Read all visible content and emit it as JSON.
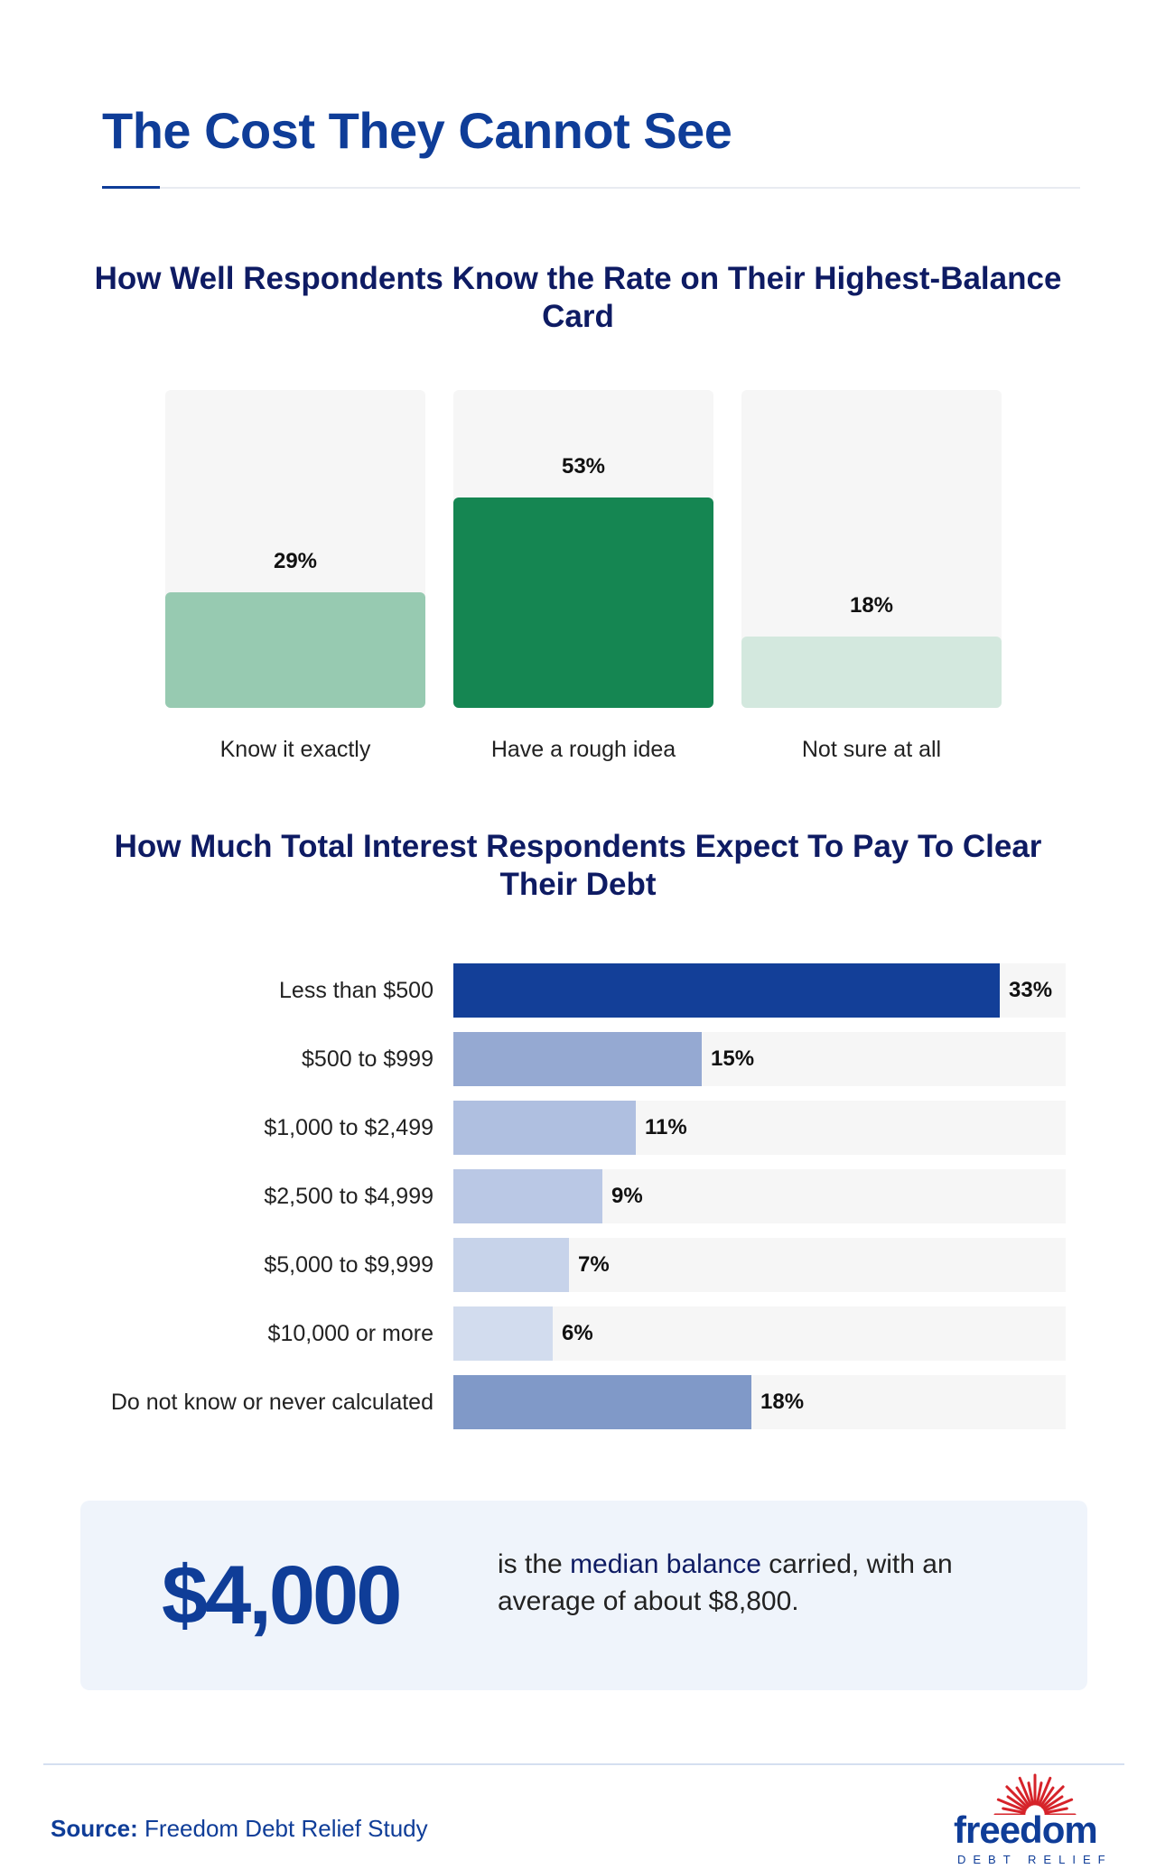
{
  "page": {
    "title": "The Cost They Cannot See",
    "accent_color": "#0f3d98"
  },
  "chart_data": [
    {
      "type": "bar",
      "orientation": "vertical",
      "title": "How Well Respondents Know the Rate on Their Highest-Balance Card",
      "categories": [
        "Know it exactly",
        "Have a rough idea",
        "Not sure at all"
      ],
      "values": [
        29,
        53,
        18
      ],
      "value_labels": [
        "29%",
        "53%",
        "18%"
      ],
      "unit": "%",
      "ylim": [
        0,
        80
      ],
      "colors": [
        "#97cab1",
        "#158652",
        "#d3e8de"
      ],
      "grid": false,
      "legend": "none"
    },
    {
      "type": "bar",
      "orientation": "horizontal",
      "title": "How Much Total Interest Respondents Expect To Pay To Clear Their Debt",
      "categories": [
        "Less than $500",
        "$500 to $999",
        "$1,000 to $2,499",
        "$2,500 to $4,999",
        "$5,000 to $9,999",
        "$10,000 or more",
        "Do not know or never calculated"
      ],
      "values": [
        33,
        15,
        11,
        9,
        7,
        6,
        18
      ],
      "value_labels": [
        "33%",
        "15%",
        "11%",
        "9%",
        "7%",
        "6%",
        "18%"
      ],
      "unit": "%",
      "xlim": [
        0,
        37
      ],
      "colors": [
        "#133f98",
        "#95a9d2",
        "#afbfe0",
        "#bac8e5",
        "#c7d3ea",
        "#d2dcee",
        "#8099c8"
      ],
      "grid": false,
      "legend": "none"
    }
  ],
  "callout": {
    "number": "$4,000",
    "text_before": "is the",
    "highlight": "median balance",
    "text_after": "carried, with an average of about $8,800."
  },
  "footer": {
    "source_label": "Source:",
    "source_text": "Freedom Debt Relief Study",
    "logo_word": "freedom",
    "logo_sub": "DEBT RELIEF"
  }
}
